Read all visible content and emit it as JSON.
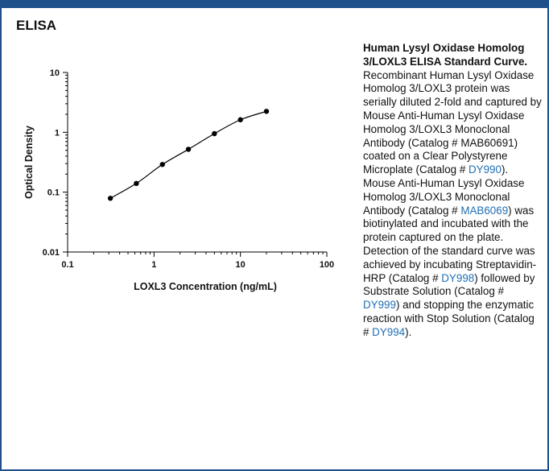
{
  "header": {
    "title": "ELISA"
  },
  "caption": {
    "title": "Human Lysyl Oxidase Homolog 3/LOXL3 ELISA Standard Curve.",
    "segments": [
      {
        "text": " Recombinant Human Lysyl Oxidase Homolog 3/LOXL3 protein was serially diluted 2-fold and captured by Mouse Anti-Human Lysyl Oxidase Homolog 3/LOXL3 Monoclonal Antibody (Catalog # MAB60691) coated on a Clear Polystyrene Microplate (Catalog # ",
        "link": false
      },
      {
        "text": "DY990",
        "link": true
      },
      {
        "text": "). Mouse Anti-Human Lysyl Oxidase Homolog 3/LOXL3 Monoclonal Antibody (Catalog # ",
        "link": false
      },
      {
        "text": "MAB6069",
        "link": true
      },
      {
        "text": ") was biotinylated and incubated with the protein captured on the plate. Detection of the standard curve was achieved by incubating Streptavidin-HRP (Catalog # ",
        "link": false
      },
      {
        "text": "DY998",
        "link": true
      },
      {
        "text": ") followed by Substrate Solution (Catalog # ",
        "link": false
      },
      {
        "text": "DY999",
        "link": true
      },
      {
        "text": ") and stopping the enzymatic reaction with Stop Solution (Catalog # ",
        "link": false
      },
      {
        "text": "DY994",
        "link": true
      },
      {
        "text": ").",
        "link": false
      }
    ]
  },
  "chart_data": {
    "type": "scatter",
    "xlabel": "LOXL3 Concentration (ng/mL)",
    "ylabel": "Optical Density",
    "xscale": "log",
    "yscale": "log",
    "xlim": [
      0.1,
      100
    ],
    "ylim": [
      0.01,
      10
    ],
    "xticks": [
      {
        "value": 0.1,
        "label": "0.1"
      },
      {
        "value": 1,
        "label": "1"
      },
      {
        "value": 10,
        "label": "10"
      },
      {
        "value": 100,
        "label": "100"
      }
    ],
    "yticks": [
      {
        "value": 0.01,
        "label": "0.01"
      },
      {
        "value": 0.1,
        "label": "0.1"
      },
      {
        "value": 1,
        "label": "1"
      },
      {
        "value": 10,
        "label": "10"
      }
    ],
    "grid": false,
    "points": [
      {
        "x": 0.3125,
        "y": 0.079
      },
      {
        "x": 0.625,
        "y": 0.14
      },
      {
        "x": 1.25,
        "y": 0.29
      },
      {
        "x": 2.5,
        "y": 0.52
      },
      {
        "x": 5,
        "y": 0.95
      },
      {
        "x": 10,
        "y": 1.62
      },
      {
        "x": 20,
        "y": 2.24
      }
    ],
    "fit_curve": true
  },
  "colors": {
    "accent": "#1f4e8c",
    "link": "#1f6fb5"
  }
}
